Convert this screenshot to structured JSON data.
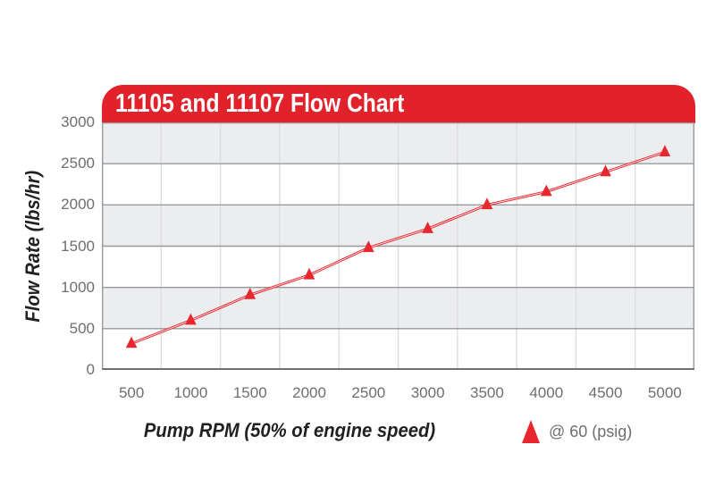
{
  "chart_data": {
    "type": "line",
    "title": "11105 and 11107 Flow Chart",
    "xlabel": "Pump RPM (50% of engine speed)",
    "ylabel": "Flow Rate (lbs/hr)",
    "categories": [
      "500",
      "1000",
      "1500",
      "2000",
      "2500",
      "3000",
      "3500",
      "4000",
      "4500",
      "5000"
    ],
    "series": [
      {
        "name": "@ 60 (psig)",
        "marker": "triangle-up",
        "values": [
          320,
          600,
          910,
          1150,
          1480,
          1710,
          2000,
          2160,
          2400,
          2640
        ]
      }
    ],
    "ylim": [
      0,
      3000
    ],
    "ytick_step": 500,
    "yticks": [
      "0",
      "500",
      "1000",
      "1500",
      "2000",
      "2500",
      "3000"
    ],
    "grid": "alternating-horizontal-bands-with-vertical-column-lines",
    "legend": {
      "position": "bottom-right",
      "items": [
        {
          "label": "@ 60 (psig)",
          "marker": "triangle-up"
        }
      ]
    }
  },
  "colors": {
    "header_red": "#e2222b",
    "series_red": "#e8262e",
    "band_gray": "#ecedef",
    "band_white": "#ffffff",
    "grid_horizontal": "#97999c",
    "grid_vertical": "#dcdde0",
    "axis_line": "#717275",
    "tick_text": "#6d6e71",
    "axis_title_text": "#232021",
    "title_text": "#ffffff"
  }
}
